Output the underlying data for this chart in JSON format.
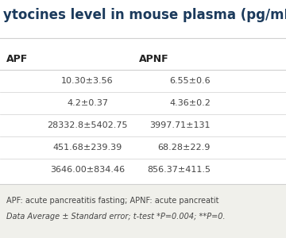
{
  "title": "ytocines level in mouse plasma (pg/mL).",
  "title_color": "#1b3a5c",
  "headers": [
    "APF",
    "APNF"
  ],
  "rows": [
    [
      "10.30±3.56",
      "6.55±0.6"
    ],
    [
      "4.2±0.37",
      "4.36±0.2"
    ],
    [
      "28332.8±5402.75",
      "3997.71±131"
    ],
    [
      "451.68±239.39",
      "68.28±22.9"
    ],
    [
      "3646.00±834.46",
      "856.37±411.5"
    ]
  ],
  "footnote_line1": "APF: acute pancreatitis fasting; APNF: acute pancreatit",
  "footnote_line2": "Data Average ± Standard error; t-test *P=0.004; **P=0.",
  "bg_color": "#ffffff",
  "footnote_bg": "#f0f0eb",
  "line_color": "#d0d0d0",
  "text_color": "#444444",
  "header_text_color": "#222222",
  "title_fontsize": 12,
  "header_fontsize": 9,
  "data_fontsize": 8,
  "footnote_fontsize": 7
}
